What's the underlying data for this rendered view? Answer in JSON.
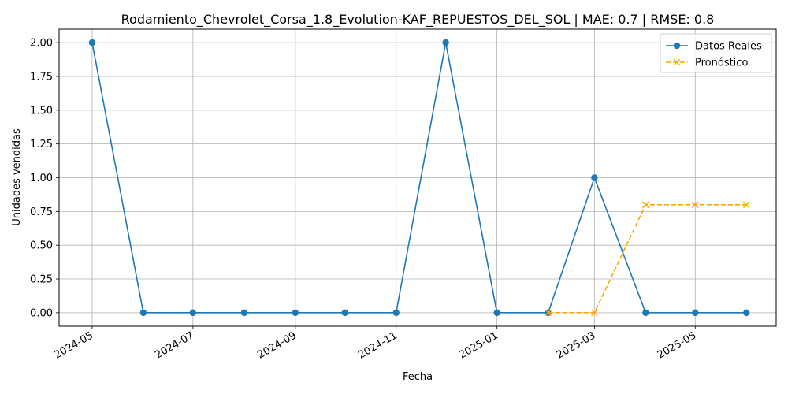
{
  "chart_data": {
    "type": "line",
    "title": "Rodamiento_Chevrolet_Corsa_1.8_Evolution-KAF_REPUESTOS_DEL_SOL | MAE: 0.7 | RMSE: 0.8",
    "xlabel": "Fecha",
    "ylabel": "Unidades vendidas",
    "xlim": [
      "2024-04-11",
      "2025-06-19"
    ],
    "ylim": [
      -0.1,
      2.1
    ],
    "x_ticks": [
      "2024-05-01",
      "2024-07-01",
      "2024-09-01",
      "2024-11-01",
      "2025-01-01",
      "2025-03-01",
      "2025-05-01"
    ],
    "x_tick_labels": [
      "2024-05",
      "2024-07",
      "2024-09",
      "2024-11",
      "2025-01",
      "2025-03",
      "2025-05"
    ],
    "y_ticks": [
      0.0,
      0.25,
      0.5,
      0.75,
      1.0,
      1.25,
      1.5,
      1.75,
      2.0
    ],
    "y_tick_labels": [
      "0.00",
      "0.25",
      "0.50",
      "0.75",
      "1.00",
      "1.25",
      "1.50",
      "1.75",
      "2.00"
    ],
    "grid": true,
    "legend_position": "top-right",
    "series": [
      {
        "name": "Datos Reales",
        "color": "#1f77b4",
        "line_style": "solid",
        "marker": "circle",
        "x": [
          "2024-05-01",
          "2024-06-01",
          "2024-07-01",
          "2024-08-01",
          "2024-09-01",
          "2024-10-01",
          "2024-11-01",
          "2024-12-01",
          "2025-01-01",
          "2025-02-01",
          "2025-03-01",
          "2025-04-01",
          "2025-05-01",
          "2025-06-01"
        ],
        "values": [
          2,
          0,
          0,
          0,
          0,
          0,
          0,
          2,
          0,
          0,
          1,
          0,
          0,
          0
        ]
      },
      {
        "name": "Pronóstico",
        "color": "#ffa500",
        "line_style": "dashed",
        "marker": "x",
        "x": [
          "2025-02-01",
          "2025-03-01",
          "2025-04-01",
          "2025-05-01",
          "2025-06-01"
        ],
        "values": [
          0,
          0,
          0.8,
          0.8,
          0.8
        ]
      }
    ]
  }
}
